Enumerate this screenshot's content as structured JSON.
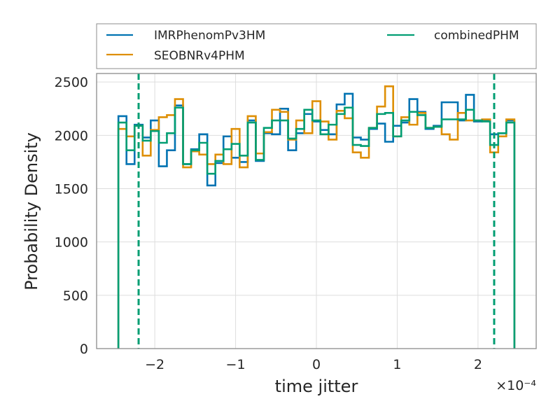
{
  "chart_data": {
    "type": "histogram",
    "xlabel": "time jitter",
    "ylabel": "Probability Density",
    "x_scale_label": "×10⁻⁴",
    "x_multiplier_exponent": -4,
    "xlim": [
      -2.72,
      2.72
    ],
    "ylim": [
      0,
      2580
    ],
    "xticks": [
      -2,
      -1,
      0,
      1,
      2
    ],
    "xtick_labels": [
      "−2",
      "−1",
      "0",
      "1",
      "2"
    ],
    "yticks": [
      0,
      500,
      1000,
      1500,
      2000,
      2500
    ],
    "ytick_labels": [
      "0",
      "500",
      "1000",
      "1500",
      "2000",
      "2500"
    ],
    "grid": true,
    "legend": {
      "position": "above-plot",
      "columns": 2
    },
    "bin_edges": [
      -2.45,
      -2.35,
      -2.25,
      -2.15,
      -2.05,
      -1.95,
      -1.85,
      -1.75,
      -1.65,
      -1.55,
      -1.45,
      -1.35,
      -1.25,
      -1.15,
      -1.05,
      -0.95,
      -0.85,
      -0.75,
      -0.65,
      -0.55,
      -0.45,
      -0.35,
      -0.25,
      -0.15,
      -0.05,
      0.05,
      0.15,
      0.25,
      0.35,
      0.45,
      0.55,
      0.65,
      0.75,
      0.85,
      0.95,
      1.05,
      1.15,
      1.25,
      1.35,
      1.45,
      1.55,
      1.65,
      1.75,
      1.85,
      1.95,
      2.05,
      2.15,
      2.25,
      2.35,
      2.45
    ],
    "series": [
      {
        "name": "IMRPhenomPv3HM",
        "color": "#0173b2",
        "values": [
          2180,
          1730,
          2100,
          1980,
          2140,
          1710,
          1860,
          2280,
          1730,
          1870,
          2010,
          1530,
          1740,
          1990,
          1790,
          1750,
          2140,
          1760,
          2020,
          2010,
          2250,
          1860,
          2020,
          2200,
          2130,
          2050,
          2010,
          2290,
          2390,
          1980,
          1960,
          2060,
          2110,
          1940,
          2090,
          2120,
          2340,
          2220,
          2060,
          2090,
          2310,
          2310,
          2140,
          2380,
          2130,
          2140,
          2010,
          2020,
          2140
        ]
      },
      {
        "name": "SEOBNRv4PHM",
        "color": "#de8f05",
        "values": [
          2060,
          1990,
          2090,
          1810,
          2050,
          2170,
          2190,
          2340,
          1700,
          1850,
          1820,
          1730,
          1820,
          1730,
          2060,
          1700,
          2180,
          1830,
          2030,
          2240,
          2220,
          1960,
          2140,
          2020,
          2320,
          2130,
          1960,
          2230,
          2160,
          1840,
          1790,
          2070,
          2270,
          2460,
          1990,
          2170,
          2100,
          2210,
          2070,
          2080,
          2010,
          1960,
          2210,
          2140,
          2140,
          2150,
          1840,
          1990,
          2150
        ]
      },
      {
        "name": "combinedPHM",
        "color": "#029e73",
        "values": [
          2120,
          1860,
          2090,
          1950,
          2040,
          1930,
          2020,
          2260,
          1730,
          1860,
          1930,
          1640,
          1760,
          1870,
          1920,
          1810,
          2120,
          1770,
          2070,
          2140,
          2140,
          1970,
          2060,
          2240,
          2140,
          2010,
          2100,
          2200,
          2260,
          1910,
          1900,
          2070,
          2200,
          2210,
          1990,
          2140,
          2220,
          2190,
          2070,
          2080,
          2150,
          2150,
          2150,
          2240,
          2140,
          2130,
          1910,
          2020,
          2120
        ]
      }
    ],
    "vlines": [
      {
        "x": -2.2,
        "color": "#029e73",
        "style": "dashed"
      },
      {
        "x": 2.2,
        "color": "#029e73",
        "style": "dashed"
      }
    ]
  }
}
